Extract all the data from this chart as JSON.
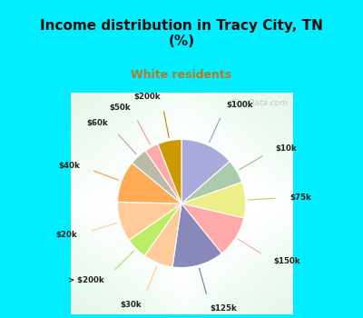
{
  "title": "Income distribution in Tracy City, TN\n(%)",
  "subtitle": "White residents",
  "title_color": "#111111",
  "subtitle_color": "#b87820",
  "bg_cyan": "#00eeff",
  "labels": [
    "$100k",
    "$10k",
    "$75k",
    "$150k",
    "$125k",
    "$30k",
    "> $200k",
    "$20k",
    "$40k",
    "$60k",
    "$50k",
    "$200k"
  ],
  "values": [
    13.5,
    6.0,
    9.0,
    10.5,
    13.0,
    7.5,
    5.5,
    10.0,
    10.5,
    4.5,
    3.5,
    6.0
  ],
  "colors": [
    "#aaaadd",
    "#aaccaa",
    "#eeee88",
    "#ffaaaa",
    "#8888bb",
    "#ffcc99",
    "#bbee66",
    "#ffcc99",
    "#ffaa55",
    "#bbbbaa",
    "#ffaaaa",
    "#cc9900"
  ],
  "line_colors": [
    "#9999cc",
    "#99bb99",
    "#cccc66",
    "#ffaaaa",
    "#7777aa",
    "#ffcc88",
    "#aadd55",
    "#ffcc88",
    "#ff9933",
    "#aaaaaa",
    "#ee9999",
    "#bb8800"
  ],
  "watermark": "City-Data.com",
  "title_fontsize": 11,
  "subtitle_fontsize": 9
}
